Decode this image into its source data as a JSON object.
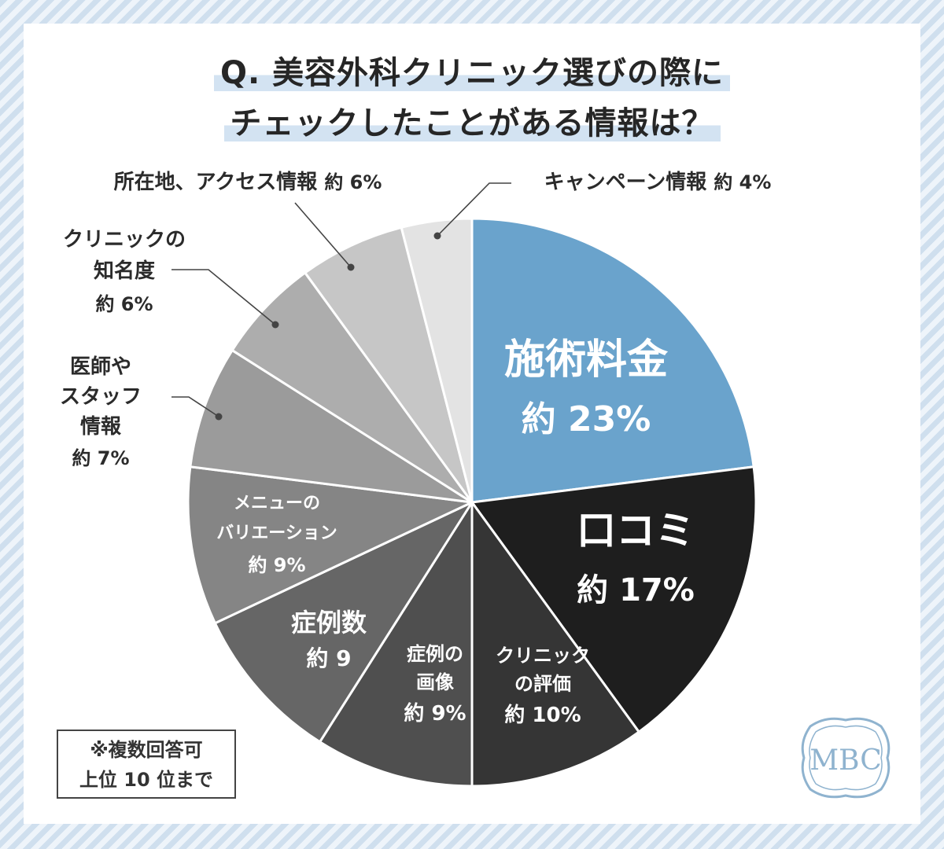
{
  "title_lines": [
    "Q. 美容外科クリニック選びの際に",
    "チェックしたことがある情報は？"
  ],
  "note_lines": [
    "※複数回答可",
    "上位 10 位まで"
  ],
  "logo_text": "MBC",
  "colors": {
    "highlight": "#6aa3cc",
    "title_marker": "#d3e3f2",
    "logo": "#8fb3cf"
  },
  "chart_data": {
    "type": "pie",
    "start": "12 o'clock, clockwise",
    "slices": [
      {
        "label": "施術料金",
        "value": 23,
        "value_text": "約 23%",
        "color": "#6aa3cc"
      },
      {
        "label": "口コミ",
        "value": 17,
        "value_text": "約 17%",
        "color": "#1e1e1e"
      },
      {
        "label": "クリニックの評価",
        "value": 10,
        "value_text": "約 10%",
        "color": "#353535"
      },
      {
        "label": "症例の画像",
        "value": 9,
        "value_text": "約 9%",
        "color": "#4f4f4f"
      },
      {
        "label": "症例数",
        "value": 9,
        "value_text": "約 9",
        "color": "#666666"
      },
      {
        "label": "メニューのバリエーション",
        "value": 9,
        "value_text": "約 9%",
        "color": "#858585"
      },
      {
        "label": "医師やスタッフ情報",
        "value": 7,
        "value_text": "約 7%",
        "color": "#9b9b9b"
      },
      {
        "label": "クリニックの知名度",
        "value": 6,
        "value_text": "約 6%",
        "color": "#adadad"
      },
      {
        "label": "所在地、アクセス情報",
        "value": 6,
        "value_text": "約 6%",
        "color": "#c6c6c6"
      },
      {
        "label": "キャンペーン情報",
        "value": 4,
        "value_text": "約 4%",
        "color": "#e3e3e3"
      }
    ]
  }
}
